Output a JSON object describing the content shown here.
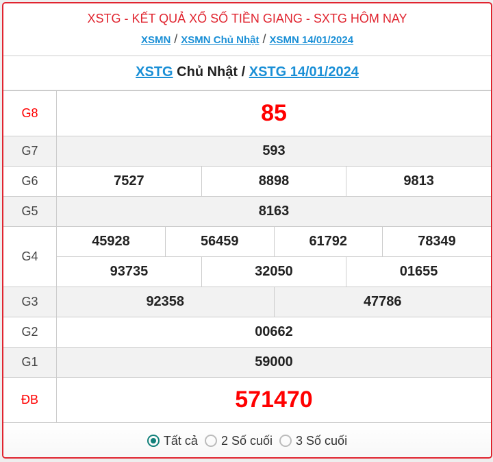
{
  "header": {
    "title": "XSTG - KẾT QUẢ XỔ SỐ TIỀN GIANG - SXTG HÔM NAY",
    "links": [
      "XSMN",
      "XSMN Chủ Nhật",
      "XSMN 14/01/2024"
    ],
    "separator": "/"
  },
  "subtitle": {
    "link1": "XSTG",
    "day": "Chủ Nhật",
    "separator": "/",
    "link2": "XSTG 14/01/2024"
  },
  "prizes": {
    "g8": {
      "label": "G8",
      "numbers": [
        "85"
      ]
    },
    "g7": {
      "label": "G7",
      "numbers": [
        "593"
      ]
    },
    "g6": {
      "label": "G6",
      "numbers": [
        "7527",
        "8898",
        "9813"
      ]
    },
    "g5": {
      "label": "G5",
      "numbers": [
        "8163"
      ]
    },
    "g4": {
      "label": "G4",
      "numbers": [
        "45928",
        "56459",
        "61792",
        "78349",
        "93735",
        "32050",
        "01655"
      ]
    },
    "g3": {
      "label": "G3",
      "numbers": [
        "92358",
        "47786"
      ]
    },
    "g2": {
      "label": "G2",
      "numbers": [
        "00662"
      ]
    },
    "g1": {
      "label": "G1",
      "numbers": [
        "59000"
      ]
    },
    "db": {
      "label": "ĐB",
      "numbers": [
        "571470"
      ]
    }
  },
  "filter": {
    "options": [
      "Tất cả",
      "2 Số cuối",
      "3 Số cuối"
    ],
    "selected": "Tất cả"
  },
  "colors": {
    "accent": "#e0242f",
    "link": "#1a8fd6",
    "radio": "#12807a",
    "special": "#ff0000"
  }
}
